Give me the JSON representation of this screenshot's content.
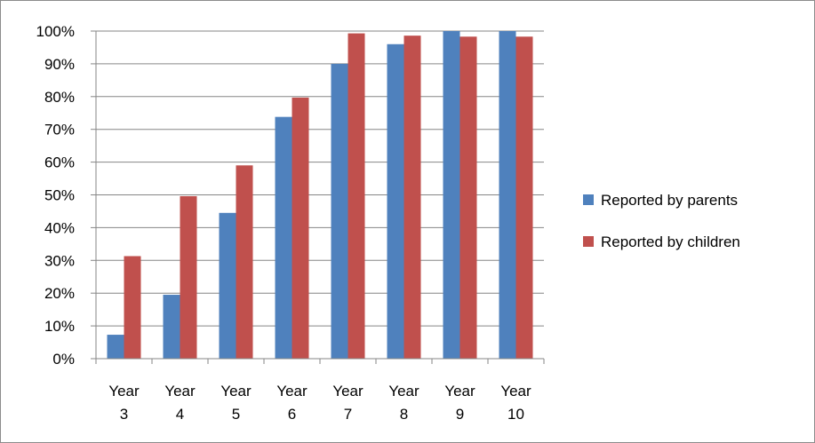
{
  "chart_data": {
    "type": "bar",
    "categories": [
      [
        "Year",
        "3"
      ],
      [
        "Year",
        "4"
      ],
      [
        "Year",
        "5"
      ],
      [
        "Year",
        "6"
      ],
      [
        "Year",
        "7"
      ],
      [
        "Year",
        "8"
      ],
      [
        "Year",
        "9"
      ],
      [
        "Year",
        "10"
      ]
    ],
    "series": [
      {
        "name": "Reported by parents",
        "color": "#4f81bd",
        "values": [
          7.3,
          19.5,
          44.5,
          73.8,
          90.0,
          96.0,
          100.0,
          100.0
        ]
      },
      {
        "name": "Reported by children",
        "color": "#c0504d",
        "values": [
          31.3,
          49.6,
          59.0,
          79.7,
          99.3,
          98.6,
          98.3,
          98.3
        ]
      }
    ],
    "ylim": [
      0,
      100
    ],
    "y_ticks": [
      "0%",
      "10%",
      "20%",
      "30%",
      "40%",
      "50%",
      "60%",
      "70%",
      "80%",
      "90%",
      "100%"
    ],
    "grid": true,
    "legend_position": "right"
  }
}
